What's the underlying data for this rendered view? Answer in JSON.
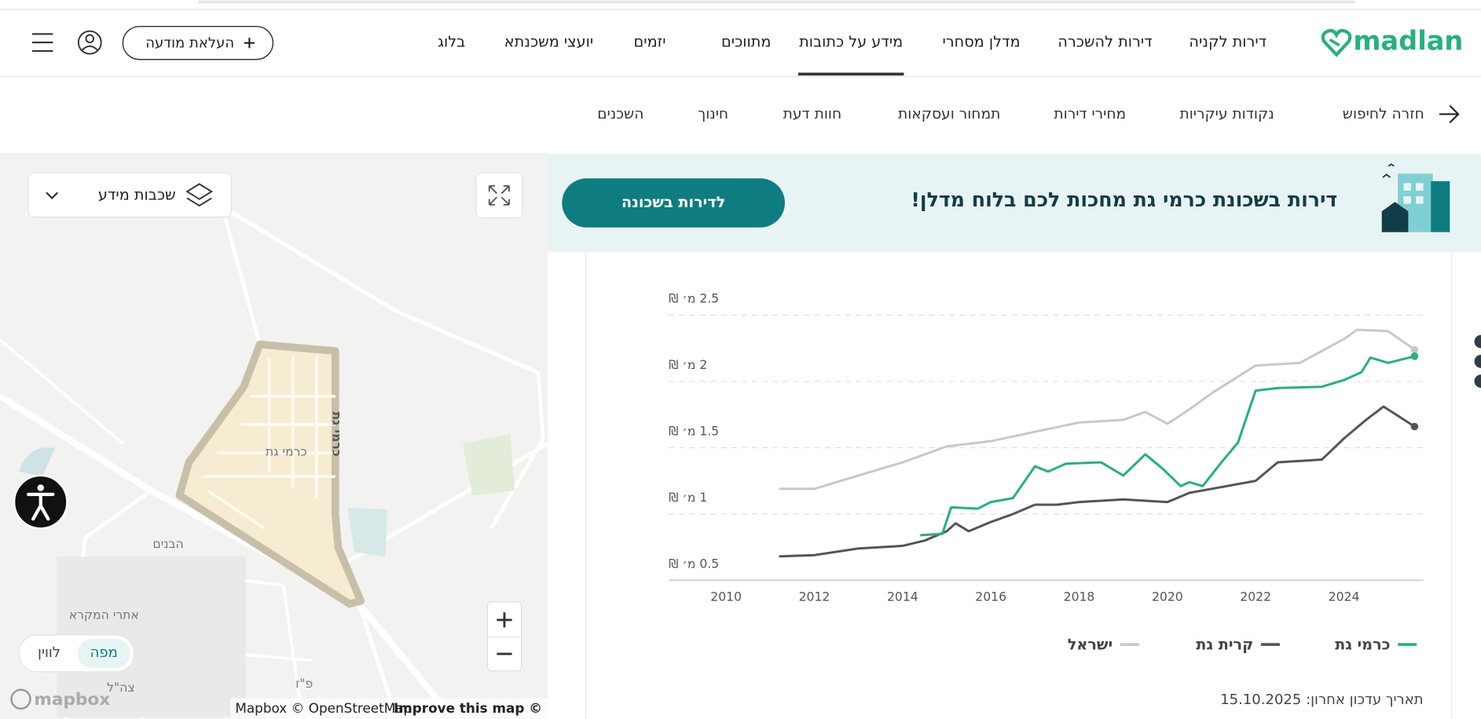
{
  "header": {
    "logo": "madlan",
    "nav": [
      "דירות לקניה",
      "דירות להשכרה",
      "מדלן מסחרי",
      "מידע על כתובות",
      "מתווכים",
      "יזמים",
      "יועצי משכנתא",
      "בלוג"
    ],
    "post_button": "העלאת מודעה"
  },
  "subnav": {
    "back": "חזרה לחיפוש",
    "tabs": [
      "נקודות עיקריות",
      "מחירי דירות",
      "תמחור ועסקאות",
      "חוות דעת",
      "חינוך",
      "השכנים"
    ]
  },
  "map": {
    "layers": "שכבות מידע",
    "labels": [
      "כרמי גת",
      "כרמי גת",
      "הבנים",
      "אתרי המקרא",
      "צה\"ל",
      "פ\"ז"
    ],
    "view_map": "מפה",
    "view_satellite": "לווין",
    "logo": "mapbox",
    "attribution": "Mapbox © OpenStreetMap",
    "improve": "Improve this map ©"
  },
  "banner": {
    "text": "דירות בשכונת כרמי גת מחכות לכם בלוח מדלן!",
    "button": "לדירות בשכונה"
  },
  "chart_data": {
    "type": "line",
    "xlim": [
      2008.7,
      2025.8
    ],
    "xticks": [
      2010,
      2012,
      2014,
      2016,
      2018,
      2020,
      2022,
      2024
    ],
    "ylim": [
      0.5,
      2.5
    ],
    "yticks": [
      {
        "value": 0.5,
        "label": "0.5 מ׳ ₪"
      },
      {
        "value": 1,
        "label": "1 מ׳ ₪"
      },
      {
        "value": 1.5,
        "label": "1.5 מ׳ ₪"
      },
      {
        "value": 2,
        "label": "2 מ׳ ₪"
      },
      {
        "value": 2.5,
        "label": "2.5 מ׳ ₪"
      }
    ],
    "grid": true,
    "legend": "bottom",
    "series": [
      {
        "name": "כרמי גת",
        "color": "#27b07e",
        "x": [
          2014.4,
          2014.9,
          2015.1,
          2015.7,
          2016,
          2016.5,
          2017,
          2017.3,
          2017.7,
          2018.5,
          2019,
          2019.5,
          2019.9,
          2020.3,
          2020.5,
          2020.8,
          2021.2,
          2021.6,
          2022,
          2022.5,
          2023.5,
          2024,
          2024.4,
          2024.6,
          2025,
          2025.6
        ],
        "values": [
          0.84,
          0.85,
          1.05,
          1.04,
          1.09,
          1.12,
          1.36,
          1.32,
          1.38,
          1.39,
          1.29,
          1.45,
          1.34,
          1.21,
          1.24,
          1.21,
          1.38,
          1.54,
          1.93,
          1.95,
          1.96,
          2.01,
          2.07,
          2.18,
          2.14,
          2.19
        ]
      },
      {
        "name": "קרית גת",
        "color": "#555555",
        "x": [
          2011.2,
          2012,
          2013,
          2014,
          2014.5,
          2015,
          2015.2,
          2015.5,
          2016,
          2016.5,
          2017,
          2017.5,
          2018,
          2019,
          2020,
          2020.5,
          2021,
          2022,
          2022.5,
          2023.5,
          2024,
          2024.5,
          2024.9,
          2025.6
        ],
        "values": [
          0.68,
          0.69,
          0.74,
          0.76,
          0.8,
          0.87,
          0.93,
          0.87,
          0.94,
          1.0,
          1.07,
          1.07,
          1.09,
          1.11,
          1.09,
          1.16,
          1.19,
          1.25,
          1.39,
          1.41,
          1.57,
          1.71,
          1.81,
          1.66
        ]
      },
      {
        "name": "ישראל",
        "color": "#c8c8c8",
        "x": [
          2011.2,
          2012,
          2013,
          2014,
          2015,
          2016,
          2017,
          2018,
          2019,
          2019.5,
          2020,
          2020.5,
          2021,
          2022,
          2023,
          2024,
          2024.3,
          2025,
          2025.6
        ],
        "values": [
          1.19,
          1.19,
          1.29,
          1.39,
          1.51,
          1.55,
          1.62,
          1.69,
          1.71,
          1.77,
          1.68,
          1.79,
          1.91,
          2.12,
          2.14,
          2.32,
          2.39,
          2.38,
          2.24
        ]
      }
    ]
  },
  "last_updated": "תאריך עדכון אחרון: 15.10.2025"
}
